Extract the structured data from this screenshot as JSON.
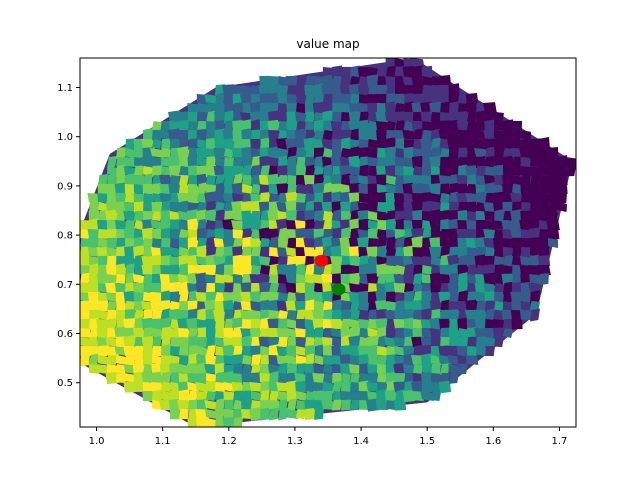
{
  "chart_data": {
    "type": "contour",
    "title": "value map",
    "xlabel": "",
    "ylabel": "",
    "xlim": [
      0.975,
      1.725
    ],
    "ylim": [
      0.41,
      1.16
    ],
    "x_ticks": [
      1.0,
      1.1,
      1.2,
      1.3,
      1.4,
      1.5,
      1.6,
      1.7
    ],
    "x_tick_labels": [
      "1.0",
      "1.1",
      "1.2",
      "1.3",
      "1.4",
      "1.5",
      "1.6",
      "1.7"
    ],
    "y_ticks": [
      0.5,
      0.6,
      0.7,
      0.8,
      0.9,
      1.0,
      1.1
    ],
    "y_tick_labels": [
      "0.5",
      "0.6",
      "0.7",
      "0.8",
      "0.9",
      "1.0",
      "1.1"
    ],
    "grid": false,
    "colormap": "viridis",
    "level_colors": [
      "#440154",
      "#46327e",
      "#365c8d",
      "#277f8e",
      "#1fa187",
      "#4ac16d",
      "#7ad151",
      "#bddf26",
      "#fde725"
    ],
    "domain_hull": [
      [
        1.18,
        1.1
      ],
      [
        1.48,
        1.16
      ],
      [
        1.72,
        0.95
      ],
      [
        1.665,
        0.64
      ],
      [
        1.5,
        0.46
      ],
      [
        1.15,
        0.41
      ],
      [
        0.975,
        0.54
      ],
      [
        0.975,
        0.81
      ],
      [
        1.02,
        0.965
      ]
    ],
    "markers": [
      {
        "x": 1.34,
        "y": 0.748,
        "color": "#ff0000"
      },
      {
        "x": 1.366,
        "y": 0.69,
        "color": "#008000"
      }
    ]
  }
}
